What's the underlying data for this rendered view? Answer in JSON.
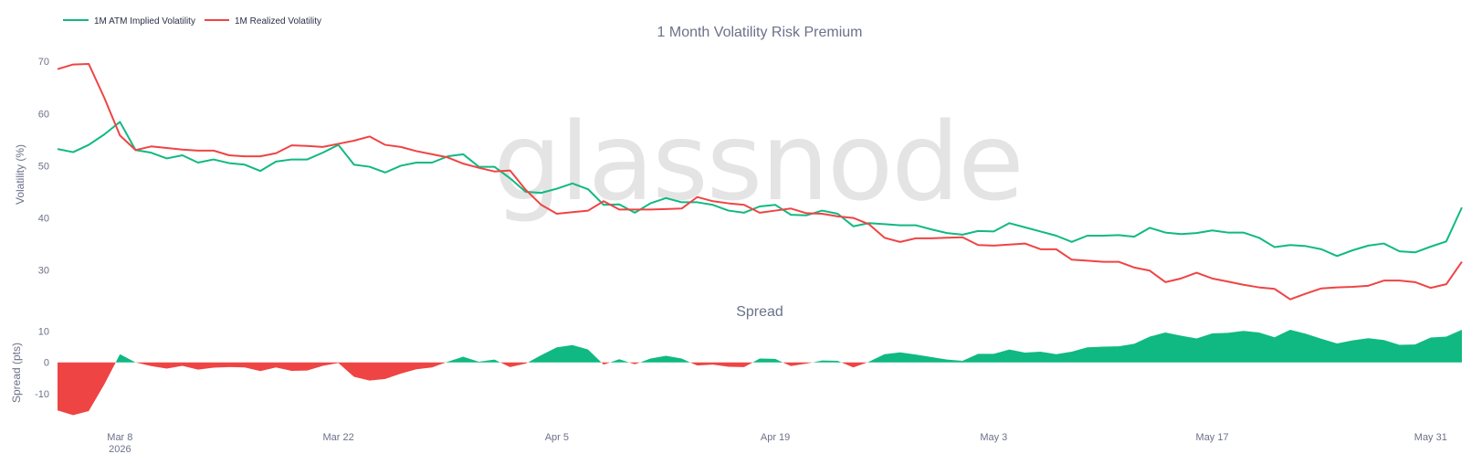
{
  "chart_data": {
    "type": "line",
    "title": "1 Month Volatility Risk Premium",
    "watermark": "glassnode",
    "legend": {
      "placement": "top-left",
      "items": [
        {
          "label": "1M ATM Implied Volatility",
          "color": "#10b981"
        },
        {
          "label": "1M Realized Volatility",
          "color": "#ef4444"
        }
      ]
    },
    "x_axis": {
      "start": "2026-03-04",
      "ticks": [
        {
          "label": "Mar 8",
          "sublabel": "2026",
          "date": "2026-03-08"
        },
        {
          "label": "Mar 22",
          "date": "2026-03-22"
        },
        {
          "label": "Apr 5",
          "date": "2026-04-05"
        },
        {
          "label": "Apr 19",
          "date": "2026-04-19"
        },
        {
          "label": "May 3",
          "date": "2026-05-03"
        },
        {
          "label": "May 17",
          "date": "2026-05-17"
        },
        {
          "label": "May 31",
          "date": "2026-05-31"
        }
      ]
    },
    "top_panel": {
      "ylabel": "Volatility (%)",
      "ylim": [
        24,
        73
      ],
      "yticks": [
        30,
        40,
        50,
        60,
        70
      ],
      "series": [
        {
          "name": "1M ATM Implied Volatility",
          "color": "#10b981",
          "values": [
            53.2,
            52.6,
            54.0,
            56.0,
            58.4,
            53.0,
            52.5,
            51.4,
            52.0,
            50.6,
            51.2,
            50.5,
            50.2,
            49.0,
            50.8,
            51.2,
            51.2,
            52.5,
            54.0,
            50.2,
            49.8,
            48.7,
            50.0,
            50.6,
            50.6,
            51.8,
            52.2,
            49.8,
            49.8,
            47.6,
            45.0,
            44.8,
            45.6,
            46.6,
            45.5,
            42.5,
            42.6,
            41.0,
            42.8,
            43.8,
            43.0,
            43.0,
            42.5,
            41.4,
            41.0,
            42.2,
            42.5,
            40.6,
            40.5,
            41.4,
            40.8,
            38.4,
            39.0,
            38.8,
            38.6,
            38.6,
            37.8,
            37.1,
            36.8,
            37.5,
            37.4,
            39.0,
            38.2,
            37.4,
            36.6,
            35.4,
            36.6,
            36.6,
            36.7,
            36.4,
            38.1,
            37.2,
            36.9,
            37.1,
            37.6,
            37.2,
            37.2,
            36.2,
            34.4,
            34.8,
            34.6,
            34.0,
            32.7,
            33.8,
            34.7,
            35.1,
            33.6,
            33.4,
            34.5,
            35.5,
            42.0
          ]
        },
        {
          "name": "1M Realized Volatility",
          "color": "#ef4444",
          "values": [
            68.5,
            69.4,
            69.5,
            63.0,
            55.8,
            53.0,
            53.7,
            53.4,
            53.1,
            52.9,
            52.9,
            52.0,
            51.8,
            51.8,
            52.4,
            53.9,
            53.8,
            53.6,
            54.2,
            54.8,
            55.6,
            54.0,
            53.6,
            52.8,
            52.2,
            51.6,
            50.4,
            49.6,
            48.9,
            49.1,
            45.4,
            42.5,
            40.8,
            41.1,
            41.4,
            43.2,
            41.6,
            41.6,
            41.6,
            41.7,
            41.8,
            44.0,
            43.2,
            42.8,
            42.5,
            41.0,
            41.4,
            41.8,
            40.9,
            40.8,
            40.3,
            40.0,
            38.8,
            36.2,
            35.4,
            36.1,
            36.1,
            36.2,
            36.3,
            34.8,
            34.7,
            34.9,
            35.1,
            34.0,
            34.0,
            32.0,
            31.8,
            31.6,
            31.6,
            30.5,
            29.9,
            27.7,
            28.4,
            29.5,
            28.4,
            27.8,
            27.2,
            26.7,
            26.4,
            24.4,
            25.5,
            26.5,
            26.7,
            26.8,
            27.0,
            28.0,
            28.0,
            27.7,
            26.6,
            27.3,
            31.6
          ]
        }
      ]
    },
    "bottom_panel": {
      "title": "Spread",
      "ylabel": "Spread (pts)",
      "ylim": [
        -19,
        13
      ],
      "yticks": [
        -10,
        0,
        10
      ],
      "positive_color": "#10b981",
      "negative_color": "#ef4444",
      "series": [
        {
          "name": "Spread",
          "values": [
            -15.3,
            -16.8,
            -15.5,
            -7.0,
            2.6,
            0.0,
            -1.2,
            -2.0,
            -1.1,
            -2.3,
            -1.7,
            -1.5,
            -1.6,
            -2.8,
            -1.6,
            -2.7,
            -2.6,
            -1.1,
            -0.2,
            -4.6,
            -5.8,
            -5.3,
            -3.6,
            -2.2,
            -1.6,
            0.2,
            1.8,
            0.2,
            0.9,
            -1.5,
            -0.4,
            2.3,
            4.8,
            5.5,
            4.1,
            -0.7,
            1.0,
            -0.6,
            1.2,
            2.1,
            1.2,
            -1.0,
            -0.7,
            -1.4,
            -1.5,
            1.2,
            1.1,
            -1.2,
            -0.4,
            0.6,
            0.5,
            -1.6,
            0.2,
            2.6,
            3.2,
            2.5,
            1.7,
            0.9,
            0.5,
            2.7,
            2.7,
            4.1,
            3.1,
            3.4,
            2.6,
            3.4,
            4.8,
            5.0,
            5.1,
            5.9,
            8.2,
            9.5,
            8.5,
            7.6,
            9.2,
            9.4,
            10.0,
            9.5,
            8.0,
            10.4,
            9.1,
            7.5,
            6.0,
            7.0,
            7.7,
            7.1,
            5.6,
            5.7,
            7.9,
            8.2,
            10.4
          ]
        }
      ]
    }
  }
}
